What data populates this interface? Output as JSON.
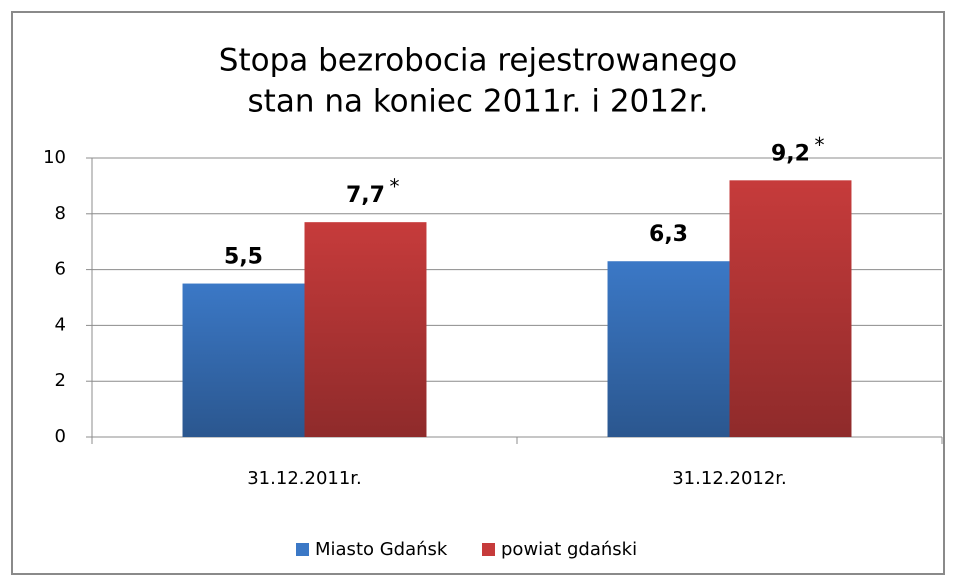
{
  "chart_data": {
    "type": "bar",
    "title": "Stopa bezrobocia rejestrowanego",
    "subtitle": "stan na koniec 2011r. i 2012r.",
    "categories": [
      "31.12.2011r.",
      "31.12.2012r."
    ],
    "series": [
      {
        "name": "Miasto Gdańsk",
        "color": "#3b78c6",
        "values": [
          5.5,
          6.3
        ],
        "value_labels": [
          "5,5",
          "6,3"
        ]
      },
      {
        "name": "powiat gdański",
        "color": "#c63b3b",
        "values": [
          7.7,
          9.2
        ],
        "value_labels": [
          "7,7",
          "9,2"
        ],
        "annotations": [
          "*",
          "*"
        ]
      }
    ],
    "ylim": [
      0,
      10
    ],
    "yticks": [
      0,
      2,
      4,
      6,
      8,
      10
    ],
    "grid": true,
    "legend": "bottom"
  }
}
